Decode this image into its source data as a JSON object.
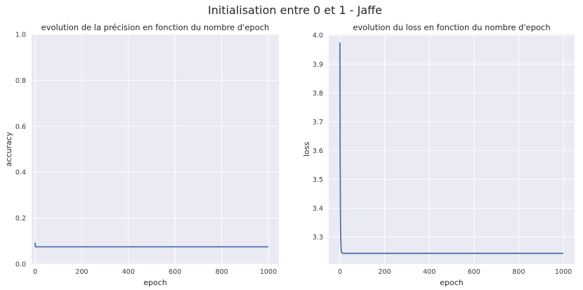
{
  "figure": {
    "suptitle": "Initialisation entre 0 et 1 - Jaffe"
  },
  "colors": {
    "axes_bg": "#EAEAF2",
    "grid": "#FFFFFF",
    "line": "#4C72B0",
    "text": "#262626"
  },
  "chart_data": [
    {
      "type": "line",
      "title": "evolution de la précision en fonction du nombre d'epoch",
      "xlabel": "epoch",
      "ylabel": "accuracy",
      "xlim": [
        -15,
        1045
      ],
      "ylim": [
        0.0,
        1.0
      ],
      "xticks": [
        0,
        200,
        400,
        600,
        800,
        1000
      ],
      "xtick_labels": [
        "0",
        "200",
        "400",
        "600",
        "800",
        "1000"
      ],
      "yticks": [
        0.0,
        0.2,
        0.4,
        0.6,
        0.8,
        1.0
      ],
      "ytick_labels": [
        "0.0",
        "0.2",
        "0.4",
        "0.6",
        "0.8",
        "1.0"
      ],
      "grid": true,
      "series": [
        {
          "x": [
            0,
            1,
            2,
            3,
            5,
            10,
            50,
            100,
            200,
            400,
            600,
            800,
            1000
          ],
          "y": [
            0.093,
            0.076,
            0.075,
            0.075,
            0.075,
            0.075,
            0.075,
            0.075,
            0.075,
            0.075,
            0.075,
            0.075,
            0.075
          ]
        }
      ]
    },
    {
      "type": "line",
      "title": "evolution du loss en fonction du nombre d'epoch",
      "xlabel": "epoch",
      "ylabel": "loss",
      "xlim": [
        -50,
        1050
      ],
      "ylim": [
        3.206,
        4.003
      ],
      "xticks": [
        0,
        200,
        400,
        600,
        800,
        1000
      ],
      "xtick_labels": [
        "0",
        "200",
        "400",
        "600",
        "800",
        "1000"
      ],
      "yticks": [
        3.3,
        3.4,
        3.5,
        3.6,
        3.7,
        3.8,
        3.9,
        4.0
      ],
      "ytick_labels": [
        "3.3",
        "3.4",
        "3.5",
        "3.6",
        "3.7",
        "3.8",
        "3.9",
        "4.0"
      ],
      "grid": true,
      "series": [
        {
          "x": [
            0,
            1,
            2,
            3,
            4,
            5,
            6,
            8,
            10,
            20,
            50,
            100,
            200,
            400,
            600,
            800,
            1000
          ],
          "y": [
            3.975,
            3.6,
            3.42,
            3.33,
            3.29,
            3.265,
            3.252,
            3.246,
            3.244,
            3.243,
            3.243,
            3.243,
            3.243,
            3.243,
            3.243,
            3.243,
            3.243
          ]
        }
      ]
    }
  ]
}
